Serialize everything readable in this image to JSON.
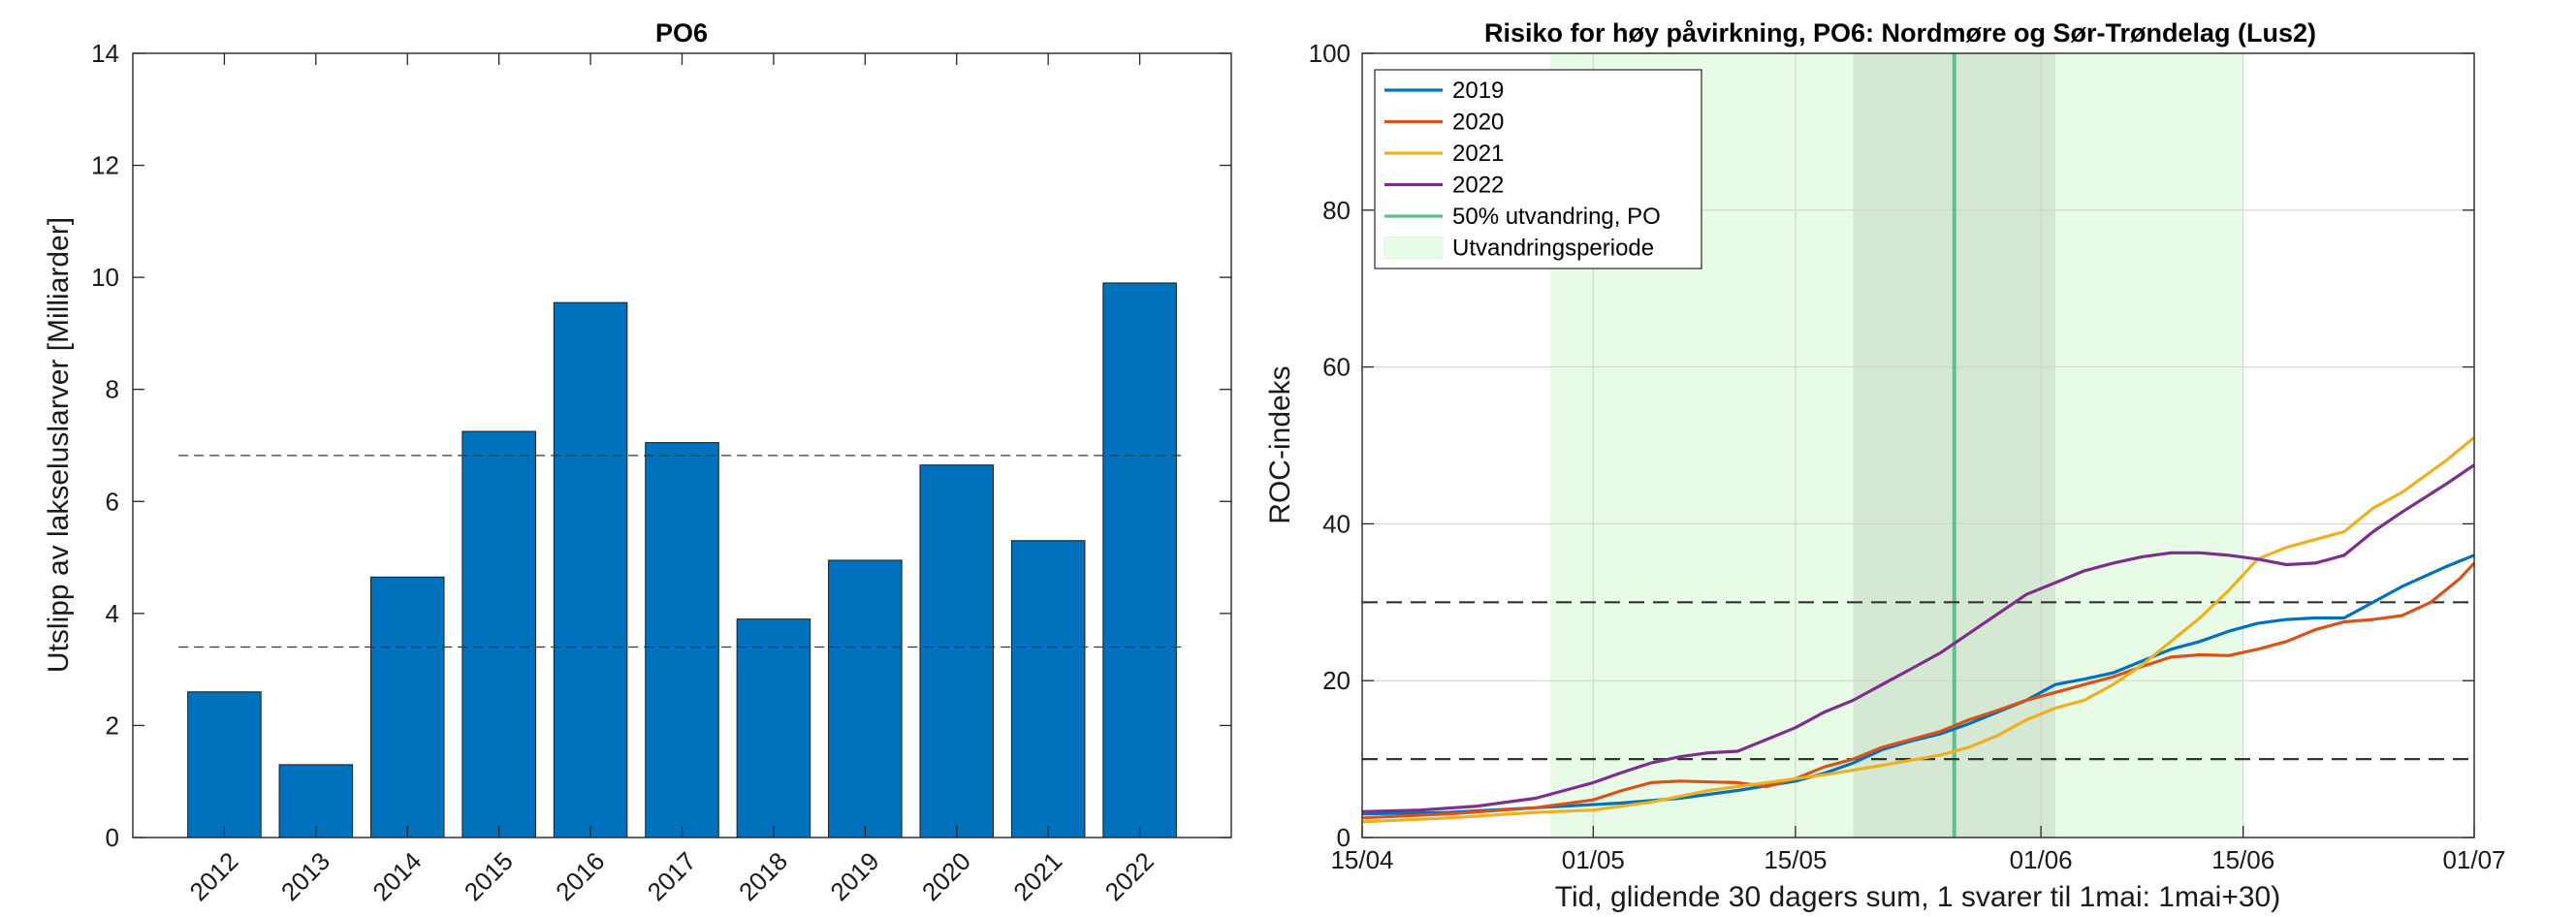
{
  "chart_data": [
    {
      "type": "bar",
      "title": "PO6",
      "ylabel": "Utslipp av lakseluslarver [Milliarder]",
      "xlabel": "",
      "categories": [
        "2012",
        "2013",
        "2014",
        "2015",
        "2016",
        "2017",
        "2018",
        "2019",
        "2020",
        "2021",
        "2022"
      ],
      "values": [
        2.6,
        1.3,
        4.65,
        7.25,
        9.55,
        7.05,
        3.9,
        4.95,
        6.65,
        5.3,
        9.9
      ],
      "ylim": [
        0,
        14
      ],
      "yticks": [
        "0",
        "2",
        "4",
        "6",
        "8",
        "10",
        "12",
        "14"
      ],
      "reference_lines": [
        6.82,
        3.4
      ],
      "bar_color": "#0072BD",
      "grid": false
    },
    {
      "type": "line",
      "title": "Risiko for høy påvirkning, PO6: Nordmøre og Sør-Trøndelag (Lus2)",
      "xlabel": "Tid, glidende 30 dagers sum, 1 svarer til 1mai: 1mai+30)",
      "ylabel": "ROC-indeks",
      "xticks": [
        "15/04",
        "01/05",
        "15/05",
        "01/06",
        "15/06",
        "01/07"
      ],
      "xtick_days": [
        0,
        16,
        30,
        47,
        61,
        77
      ],
      "xlim_days": [
        0,
        77
      ],
      "yticks": [
        "0",
        "20",
        "40",
        "60",
        "80",
        "100"
      ],
      "ylim": [
        0,
        100
      ],
      "grid": true,
      "legend_position": "top-left",
      "threshold_lines": [
        30,
        10
      ],
      "migration_period_days": [
        13,
        61
      ],
      "migration_core_days": [
        34,
        48
      ],
      "migration_50pct_day": 41,
      "legend": {
        "median_label": "50% utvandring, PO",
        "period_label": "Utvandringsperiode"
      },
      "colors": {
        "period_fill": "#e8fbe6",
        "core_fill": "#d5e8d3",
        "median_line": "#5fc08a",
        "threshold": "#333333"
      },
      "series": [
        {
          "name": "2019",
          "color": "#0072BD",
          "points": [
            [
              0,
              3
            ],
            [
              6,
              3.2
            ],
            [
              12,
              3.8
            ],
            [
              18,
              4.4
            ],
            [
              22,
              5
            ],
            [
              26,
              6
            ],
            [
              30,
              7.2
            ],
            [
              32,
              8.2
            ],
            [
              34,
              9.5
            ],
            [
              36,
              11.2
            ],
            [
              38,
              12.3
            ],
            [
              40,
              13.2
            ],
            [
              42,
              14.5
            ],
            [
              44,
              16
            ],
            [
              46,
              17.5
            ],
            [
              48,
              19.5
            ],
            [
              50,
              20.2
            ],
            [
              52,
              21
            ],
            [
              54,
              22.5
            ],
            [
              56,
              24
            ],
            [
              58,
              25
            ],
            [
              60,
              26.3
            ],
            [
              62,
              27.3
            ],
            [
              64,
              27.8
            ],
            [
              66,
              28
            ],
            [
              68,
              28
            ],
            [
              70,
              30
            ],
            [
              72,
              32
            ],
            [
              75,
              34.5
            ],
            [
              77,
              36
            ]
          ]
        },
        {
          "name": "2020",
          "color": "#D95319",
          "points": [
            [
              0,
              2.5
            ],
            [
              6,
              3
            ],
            [
              12,
              3.8
            ],
            [
              16,
              4.8
            ],
            [
              18,
              6
            ],
            [
              20,
              7
            ],
            [
              22,
              7.2
            ],
            [
              26,
              7
            ],
            [
              28,
              6.5
            ],
            [
              30,
              7.5
            ],
            [
              32,
              9
            ],
            [
              34,
              10
            ],
            [
              36,
              11.5
            ],
            [
              38,
              12.5
            ],
            [
              40,
              13.5
            ],
            [
              42,
              15
            ],
            [
              44,
              16.2
            ],
            [
              46,
              17.5
            ],
            [
              48,
              18.5
            ],
            [
              50,
              19.5
            ],
            [
              52,
              20.5
            ],
            [
              54,
              21.8
            ],
            [
              56,
              23
            ],
            [
              58,
              23.3
            ],
            [
              60,
              23.2
            ],
            [
              62,
              24
            ],
            [
              64,
              25
            ],
            [
              66,
              26.5
            ],
            [
              68,
              27.5
            ],
            [
              70,
              27.8
            ],
            [
              72,
              28.3
            ],
            [
              74,
              30
            ],
            [
              76,
              33
            ],
            [
              77,
              35
            ]
          ]
        },
        {
          "name": "2021",
          "color": "#EDB120",
          "points": [
            [
              0,
              2
            ],
            [
              6,
              2.5
            ],
            [
              12,
              3.2
            ],
            [
              16,
              3.5
            ],
            [
              20,
              4.5
            ],
            [
              24,
              6
            ],
            [
              28,
              7
            ],
            [
              30,
              7.5
            ],
            [
              32,
              8
            ],
            [
              36,
              9.2
            ],
            [
              40,
              10.5
            ],
            [
              42,
              11.5
            ],
            [
              44,
              13
            ],
            [
              46,
              15
            ],
            [
              48,
              16.5
            ],
            [
              50,
              17.5
            ],
            [
              52,
              19.5
            ],
            [
              54,
              22
            ],
            [
              56,
              25
            ],
            [
              58,
              28
            ],
            [
              60,
              31.5
            ],
            [
              62,
              35.5
            ],
            [
              64,
              37
            ],
            [
              66,
              38
            ],
            [
              68,
              39
            ],
            [
              70,
              42
            ],
            [
              72,
              44
            ],
            [
              75,
              48
            ],
            [
              77,
              51
            ]
          ]
        },
        {
          "name": "2022",
          "color": "#7E2F8E",
          "points": [
            [
              0,
              3.3
            ],
            [
              4,
              3.5
            ],
            [
              8,
              4
            ],
            [
              12,
              5
            ],
            [
              14,
              6
            ],
            [
              16,
              7
            ],
            [
              18,
              8.3
            ],
            [
              20,
              9.5
            ],
            [
              22,
              10.3
            ],
            [
              24,
              10.8
            ],
            [
              26,
              11
            ],
            [
              28,
              12.5
            ],
            [
              30,
              14
            ],
            [
              32,
              16
            ],
            [
              34,
              17.5
            ],
            [
              36,
              19.5
            ],
            [
              38,
              21.5
            ],
            [
              40,
              23.5
            ],
            [
              42,
              26
            ],
            [
              44,
              28.5
            ],
            [
              46,
              31
            ],
            [
              48,
              32.5
            ],
            [
              50,
              34
            ],
            [
              52,
              35
            ],
            [
              54,
              35.8
            ],
            [
              56,
              36.3
            ],
            [
              58,
              36.3
            ],
            [
              60,
              36
            ],
            [
              62,
              35.5
            ],
            [
              64,
              34.8
            ],
            [
              66,
              35
            ],
            [
              68,
              36
            ],
            [
              70,
              39
            ],
            [
              72,
              41.5
            ],
            [
              75,
              45
            ],
            [
              77,
              47.5
            ]
          ]
        }
      ]
    }
  ]
}
